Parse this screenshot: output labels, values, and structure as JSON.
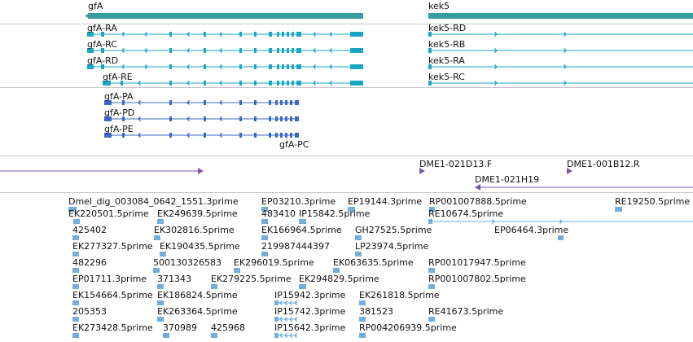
{
  "colors": {
    "gene": "#3a9b9e",
    "transcript_a": "#18a7c4",
    "transcript_b": "#3a68c4",
    "clone": "#7a55a8",
    "est": "#72addb"
  },
  "genes": [
    {
      "name": "gfA"
    },
    {
      "name": "kek5"
    }
  ],
  "transcripts_a": [
    {
      "name": "gfA-RA"
    },
    {
      "name": "gfA-RC"
    },
    {
      "name": "gfA-RD"
    },
    {
      "name": "gfA-RE"
    },
    {
      "name": "kek5-RD"
    },
    {
      "name": "kek5-RB"
    },
    {
      "name": "kek5-RA"
    },
    {
      "name": "kek5-RC"
    }
  ],
  "transcripts_b": [
    {
      "name": "gfA-PA"
    },
    {
      "name": "gfA-PD"
    },
    {
      "name": "gfA-PE"
    },
    {
      "name": "gfA-PC"
    }
  ],
  "clones": [
    {
      "name": "DME1-021D13.F"
    },
    {
      "name": "DME1-001B12.R"
    },
    {
      "name": "DME1-021H19"
    }
  ],
  "ests": [
    {
      "name": "Dmel_dig_003084_0642_1551.3prime"
    },
    {
      "name": "EP03210.3prime"
    },
    {
      "name": "EP19144.3prime"
    },
    {
      "name": "RP001007888.5prime"
    },
    {
      "name": "RE19250.5prime"
    },
    {
      "name": "EK220501.5prime"
    },
    {
      "name": "EK249639.5prime"
    },
    {
      "name": "483410"
    },
    {
      "name": "IP15842.5prime"
    },
    {
      "name": "RE10674.5prime"
    },
    {
      "name": "425402"
    },
    {
      "name": "EK302816.5prime"
    },
    {
      "name": "EK166964.5prime"
    },
    {
      "name": "GH27525.5prime"
    },
    {
      "name": "EP06464.3prime"
    },
    {
      "name": "EK277327.5prime"
    },
    {
      "name": "EK190435.5prime"
    },
    {
      "name": "219987444397"
    },
    {
      "name": "LP23974.5prime"
    },
    {
      "name": "482296"
    },
    {
      "name": "500130326583"
    },
    {
      "name": "EK296019.5prime"
    },
    {
      "name": "EK063635.5prime"
    },
    {
      "name": "RP001017947.5prime"
    },
    {
      "name": "EP01711.3prime"
    },
    {
      "name": "371343"
    },
    {
      "name": "EK279225.5prime"
    },
    {
      "name": "EK294829.5prime"
    },
    {
      "name": "RP001007802.5prime"
    },
    {
      "name": "EK154664.5prime"
    },
    {
      "name": "EK186824.5prime"
    },
    {
      "name": "IP15942.3prime"
    },
    {
      "name": "EK261818.5prime"
    },
    {
      "name": "205353"
    },
    {
      "name": "EK263364.5prime"
    },
    {
      "name": "IP15742.3prime"
    },
    {
      "name": "381523"
    },
    {
      "name": "RE41673.5prime"
    },
    {
      "name": "EK273428.5prime"
    },
    {
      "name": "370989"
    },
    {
      "name": "425968"
    },
    {
      "name": "IP15642.3prime"
    },
    {
      "name": "RP004206939.5prime"
    }
  ]
}
